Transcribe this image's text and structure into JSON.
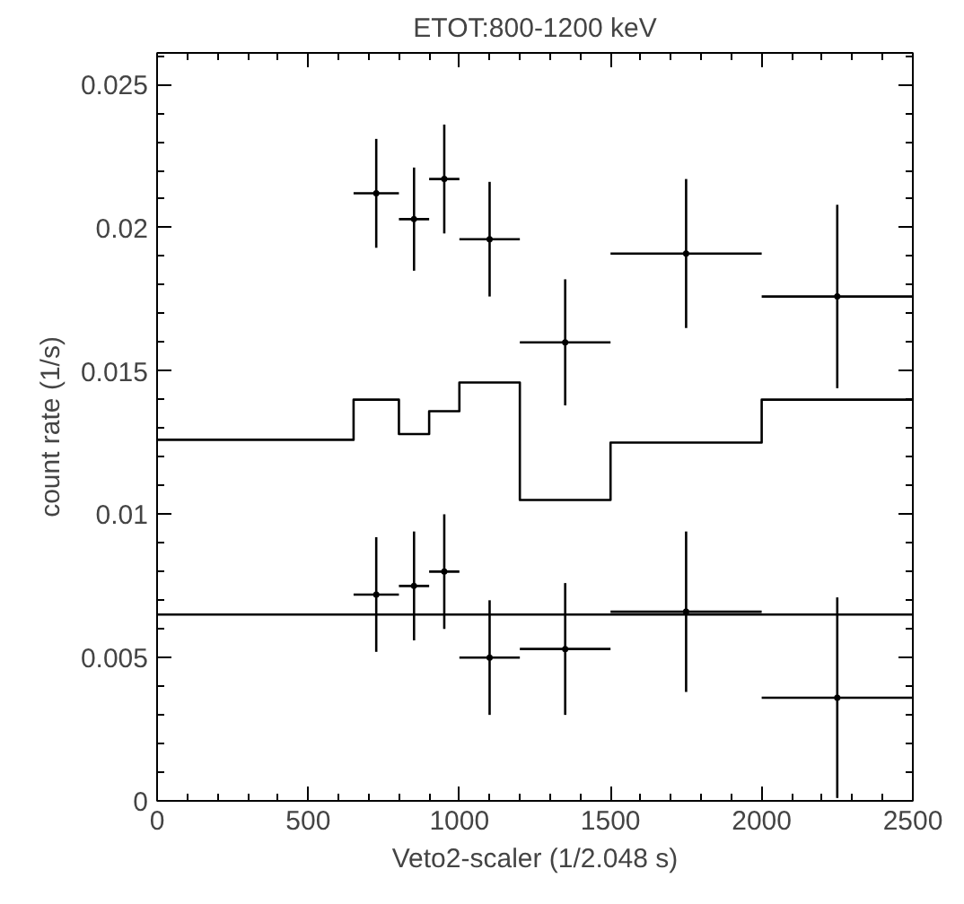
{
  "chart_data": {
    "type": "scatter",
    "title": "ETOT:800-1200 keV",
    "xlabel": "Veto2-scaler (1/2.048 s)",
    "ylabel": "count rate (1/s)",
    "xlim": [
      0,
      2500
    ],
    "xticks": [
      0,
      500,
      1000,
      1500,
      2000,
      2500
    ],
    "ylim": [
      0,
      0.0261
    ],
    "yticks": [
      0,
      0.005,
      0.01,
      0.015,
      0.02,
      0.025
    ],
    "grid": false,
    "marker": "none",
    "series": [
      {
        "type": "step",
        "color": "#000000",
        "x": [
          0,
          650,
          800,
          900,
          1000,
          1200,
          1500,
          2000,
          2500
        ],
        "values": [
          0.0126,
          0.014,
          0.0128,
          0.0136,
          0.0146,
          0.0105,
          0.0125,
          0.014,
          0.014
        ]
      },
      {
        "color": "#000000",
        "x": [
          725,
          850,
          950,
          1100,
          1350,
          1750,
          2250
        ],
        "values": [
          0.0212,
          0.0203,
          0.0217,
          0.0196,
          0.016,
          0.0191,
          0.0176
        ],
        "errors": [
          0.0019,
          0.0018,
          0.0019,
          0.002,
          0.0022,
          0.0026,
          0.0032
        ],
        "xerrors": [
          75,
          50,
          50,
          100,
          150,
          250,
          250
        ]
      },
      {
        "color": "#000000",
        "x": [
          725,
          850,
          950,
          1100,
          1350,
          1750,
          2250
        ],
        "values": [
          0.0072,
          0.0075,
          0.008,
          0.005,
          0.0053,
          0.0066,
          0.0036
        ],
        "errors": [
          0.002,
          0.0019,
          0.002,
          0.002,
          0.0023,
          0.0028,
          0.0035
        ],
        "xerrors": [
          75,
          50,
          50,
          100,
          150,
          250,
          250
        ]
      }
    ],
    "ref_lines": [
      {
        "axis": "y",
        "value": 0.0065,
        "color": "#000000"
      }
    ]
  }
}
